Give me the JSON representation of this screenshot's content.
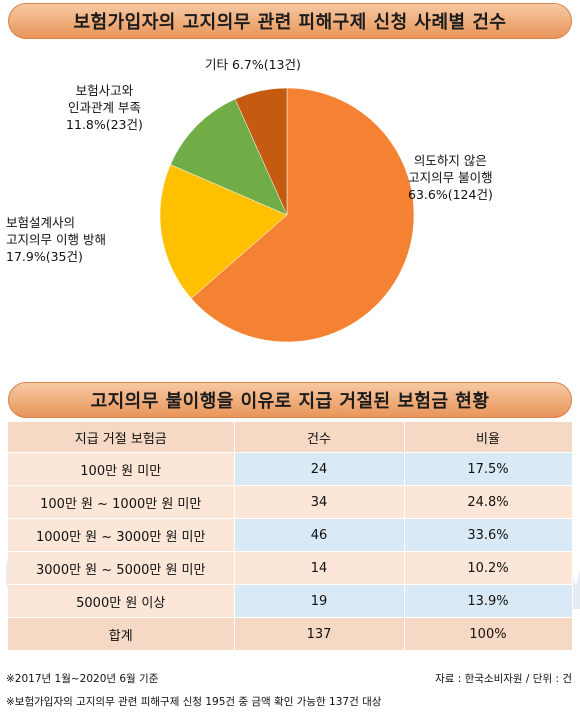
{
  "chart_data": [
    {
      "type": "pie",
      "title": "보험가입자의 고지의무 관련 피해구제 신청 사례별 건수",
      "slices": [
        {
          "key": "unintended",
          "label_lines": [
            "의도하지 않은",
            "고지의무 불이행",
            "63.6%(124건)"
          ],
          "percent": 63.6,
          "count": 124,
          "color": "#f58232"
        },
        {
          "key": "planner",
          "label_lines": [
            "보험설계사의",
            "고지의무 이행 방해",
            "17.9%(35건)"
          ],
          "percent": 17.9,
          "count": 35,
          "color": "#ffc000"
        },
        {
          "key": "accident",
          "label_lines": [
            "보험사고와",
            "인과관계 부족",
            "11.8%(23건)"
          ],
          "percent": 11.8,
          "count": 23,
          "color": "#70ad47"
        },
        {
          "key": "other",
          "label_lines": [
            "기타 6.7%(13건)"
          ],
          "percent": 6.7,
          "count": 13,
          "color": "#c55a11"
        }
      ]
    },
    {
      "type": "table",
      "title": "고지의무 불이행을 이유로 지급 거절된 보험금 현황",
      "columns": [
        "지급 거절 보험금",
        "건수",
        "비율"
      ],
      "rows": [
        [
          "100만 원 미만",
          "24",
          "17.5%"
        ],
        [
          "100만 원 ~ 1000만 원 미만",
          "34",
          "24.8%"
        ],
        [
          "1000만 원 ~ 3000만 원 미만",
          "46",
          "33.6%"
        ],
        [
          "3000만 원 ~ 5000만 원 미만",
          "14",
          "10.2%"
        ],
        [
          "5000만 원 이상",
          "19",
          "13.9%"
        ]
      ],
      "total": [
        "합계",
        "137",
        "100%"
      ]
    }
  ],
  "watermark": "dataNews",
  "notes": {
    "period": "※2017년 1월~2020년 6월 기준",
    "source": "자료 : 한국소비자원 / 단위 : 건",
    "scope": "※보험가입자의 고지의무 관련 피해구제 신청 195건 중 금액 확인 가능한 137건 대상"
  }
}
